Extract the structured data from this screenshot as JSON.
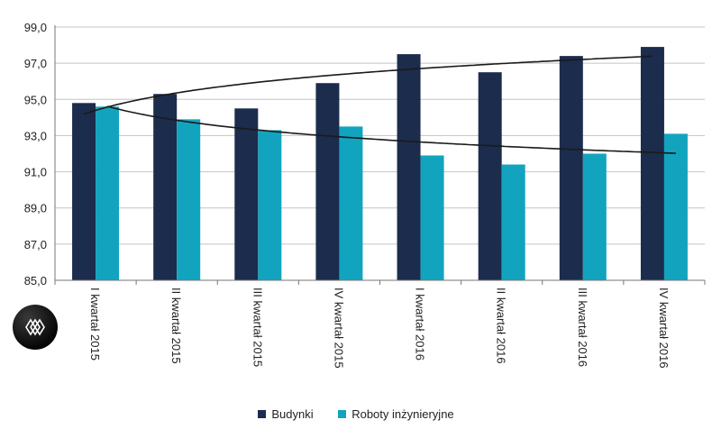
{
  "chart_data": {
    "type": "bar",
    "categories": [
      "I kwartał 2015",
      "II kwartał 2015",
      "III kwartał 2015",
      "IV kwartał 2015",
      "I kwartał 2016",
      "II kwartał 2016",
      "III kwartał 2016",
      "IV kwartał 2016"
    ],
    "series": [
      {
        "name": "Budynki",
        "color": "#1c2c4c",
        "values": [
          94.8,
          95.3,
          94.5,
          95.9,
          97.5,
          96.5,
          97.4,
          97.9
        ]
      },
      {
        "name": "Roboty inżynieryjne",
        "color": "#12a4bf",
        "values": [
          94.6,
          93.9,
          93.3,
          93.5,
          91.9,
          91.4,
          92.0,
          93.1
        ]
      }
    ],
    "trendlines": [
      {
        "series": "Budynki",
        "type": "logarithmic",
        "color": "#1a1a1a"
      },
      {
        "series": "Roboty inżynieryjne",
        "type": "logarithmic",
        "color": "#1a1a1a"
      }
    ],
    "yticks": [
      "85,0",
      "87,0",
      "89,0",
      "91,0",
      "93,0",
      "95,0",
      "97,0",
      "99,0"
    ],
    "ylim": [
      85,
      99
    ],
    "grid": true,
    "legend_position": "bottom"
  },
  "logo": {
    "name": "logo-icon"
  }
}
